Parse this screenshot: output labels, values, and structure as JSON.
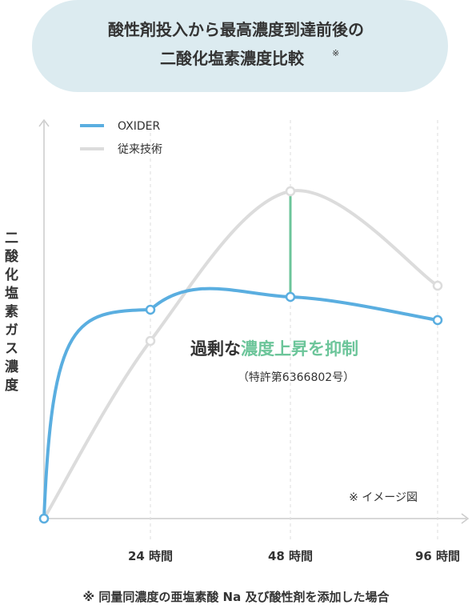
{
  "chart_data": {
    "type": "line",
    "title": [
      "酸性剤投入から最高濃度到達前後の",
      "二酸化塩素濃度比較"
    ],
    "title_note": "※",
    "y_label": "二酸化塩素ガス濃度",
    "categories": [
      null,
      "24 時間",
      "48 時間",
      "96 時間"
    ],
    "series": [
      {
        "name": "OXIDER",
        "color": "#5aaee0",
        "values": [
          0,
          52.2,
          55.4,
          49.6
        ]
      },
      {
        "name": "従来技術",
        "color": "#dcdcdc",
        "values": [
          0,
          44.4,
          81.8,
          58.2
        ]
      }
    ],
    "ylim": [
      0,
      100
    ],
    "highlight_color": "#6cc59a",
    "annotation": [
      "過剰な",
      "濃度上昇を抑制"
    ],
    "annotation_sub": "（特許第6366802号）",
    "image_note": "※ イメージ図",
    "footnote": "※ 同量同濃度の亜塩素酸 Na 及び酸性剤を添加した場合"
  }
}
